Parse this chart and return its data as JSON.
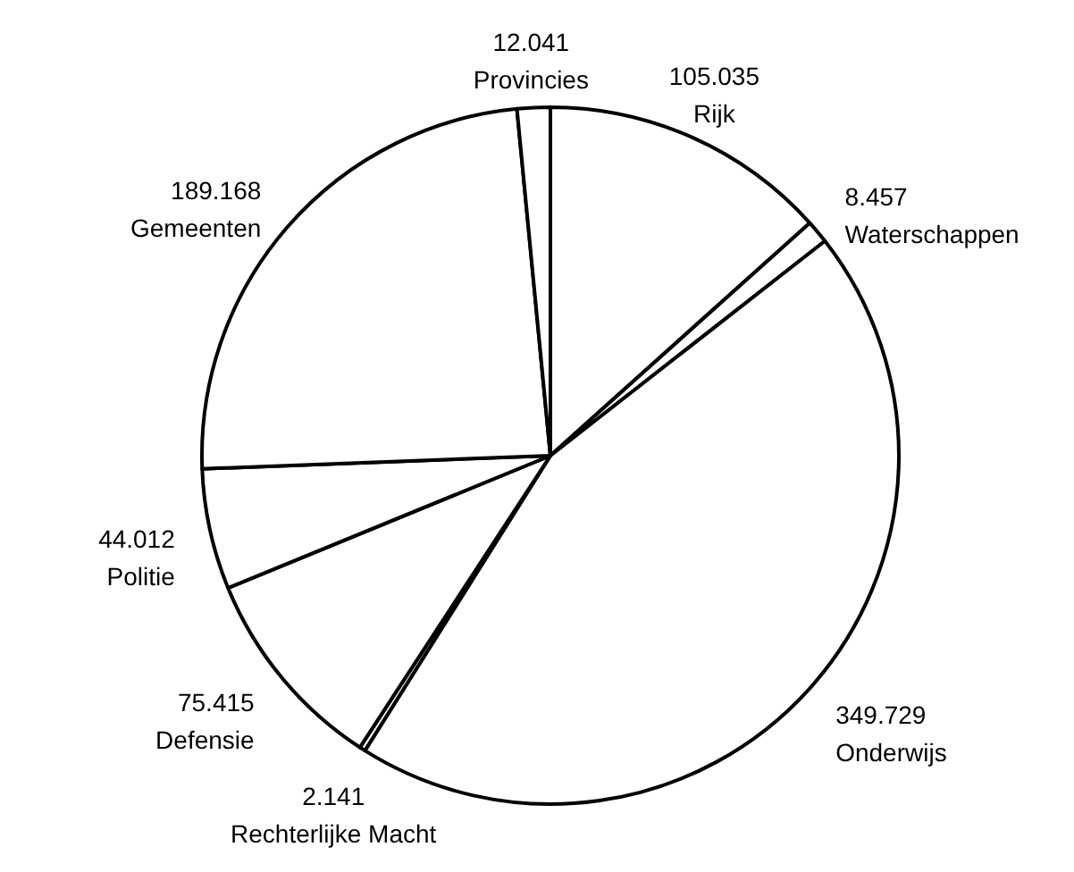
{
  "chart_data": {
    "type": "pie",
    "categories": [
      "Rijk",
      "Waterschappen",
      "Onderwijs",
      "Rechterlijke Macht",
      "Defensie",
      "Politie",
      "Gemeenten",
      "Provincies"
    ],
    "values": [
      105035,
      8457,
      349729,
      2141,
      75415,
      44012,
      189168,
      12041
    ],
    "value_labels": [
      "105.035",
      "8.457",
      "349.729",
      "2.141",
      "75.415",
      "44.012",
      "189.168",
      "12.041"
    ],
    "colors": [
      "#ffffff",
      "#ffffff",
      "#ffffff",
      "#ffffff",
      "#ffffff",
      "#ffffff",
      "#ffffff",
      "#ffffff"
    ]
  }
}
